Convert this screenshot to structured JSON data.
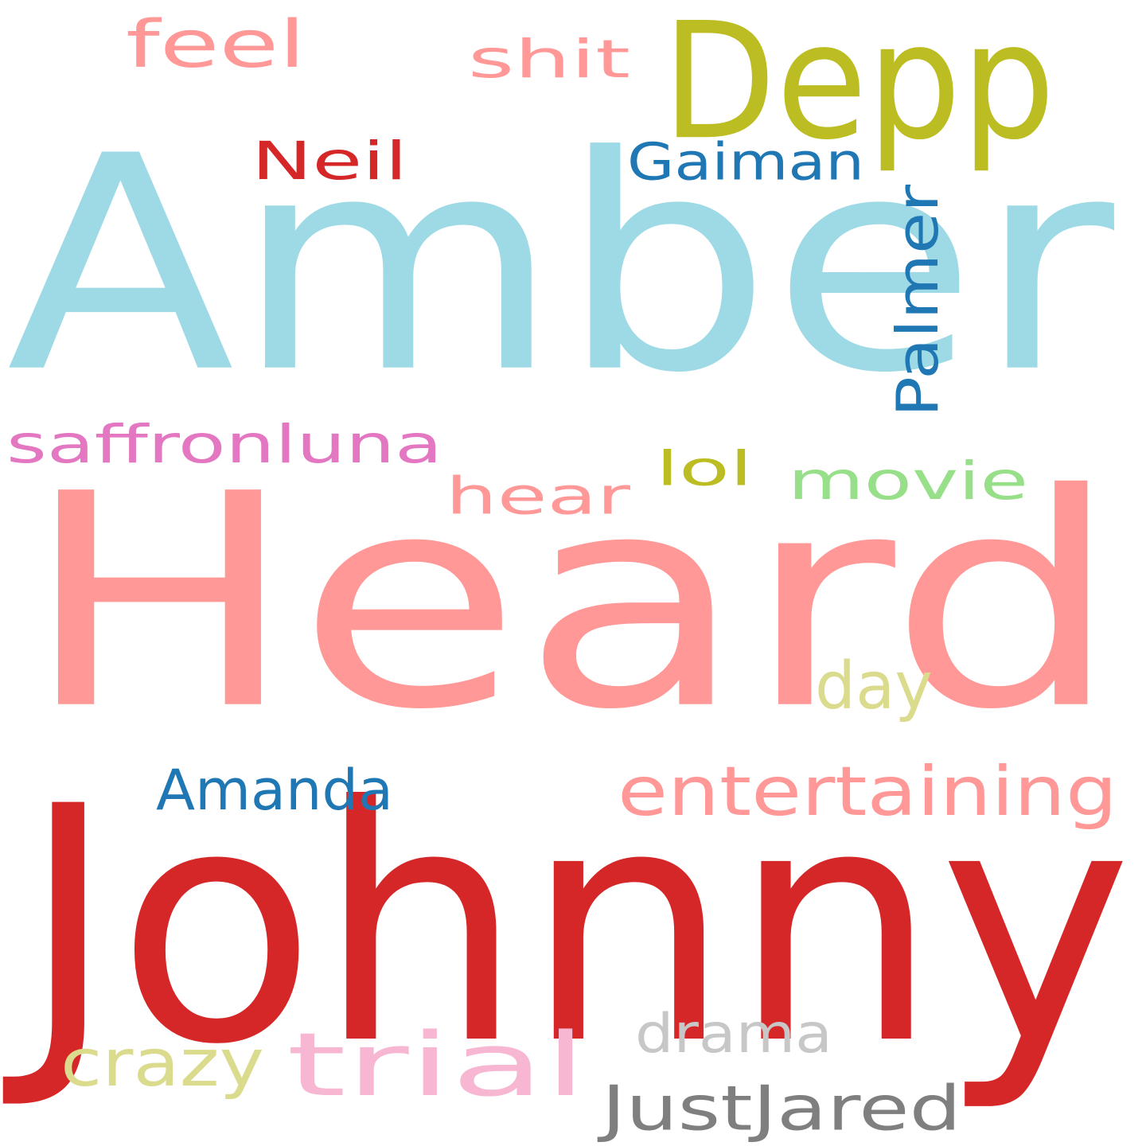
{
  "words": [
    {
      "text": "Amber",
      "color": "#9edae5"
    },
    {
      "text": "Heard",
      "color": "#ff9896"
    },
    {
      "text": "Johnny",
      "color": "#d62728"
    },
    {
      "text": "Depp",
      "color": "#bcbd22"
    },
    {
      "text": "feel",
      "color": "#ff9896"
    },
    {
      "text": "shit",
      "color": "#ff9896"
    },
    {
      "text": "Neil",
      "color": "#d62728"
    },
    {
      "text": "Gaiman",
      "color": "#1f77b4"
    },
    {
      "text": "Palmer",
      "color": "#1f77b4"
    },
    {
      "text": "saffronluna",
      "color": "#e377c2"
    },
    {
      "text": "hear",
      "color": "#ff9896"
    },
    {
      "text": "lol",
      "color": "#bcbd22"
    },
    {
      "text": "movie",
      "color": "#98df8a"
    },
    {
      "text": "day",
      "color": "#dbdb8d"
    },
    {
      "text": "Amanda",
      "color": "#1f77b4"
    },
    {
      "text": "entertaining",
      "color": "#ff9896"
    },
    {
      "text": "drama",
      "color": "#c7c7c7"
    },
    {
      "text": "crazy",
      "color": "#dbdb8d"
    },
    {
      "text": "trial",
      "color": "#f7b6d2"
    },
    {
      "text": "JustJared",
      "color": "#7f7f7f"
    }
  ]
}
